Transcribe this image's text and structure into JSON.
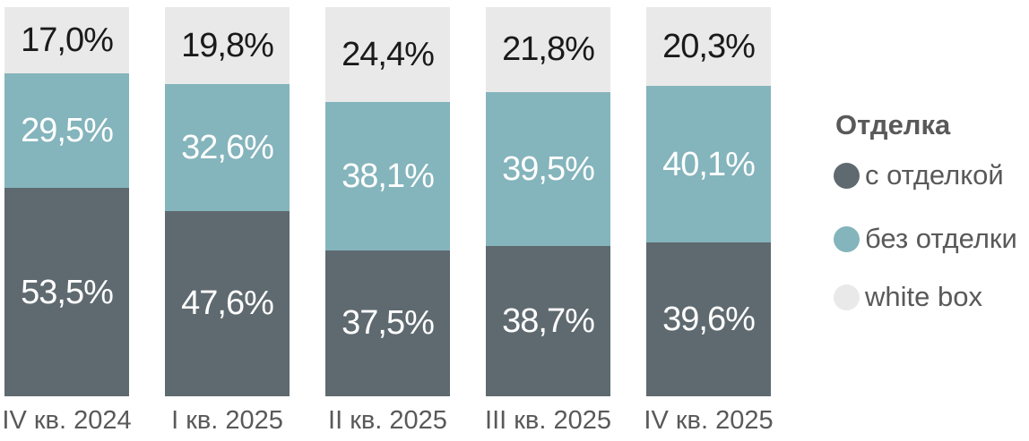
{
  "chart_data": {
    "type": "bar",
    "variant": "stacked-100-percent",
    "orientation": "vertical",
    "grid": false,
    "legend_position": "right",
    "legend_title": "Отделка",
    "categories": [
      "IV кв. 2024",
      "I кв. 2025",
      "II кв. 2025",
      "III кв. 2025",
      "IV кв. 2025"
    ],
    "ylim": [
      0,
      100
    ],
    "series": [
      {
        "name": "с отделкой",
        "color": "#5F6A70",
        "label_color": "#FFFFFF",
        "values": [
          53.5,
          47.6,
          37.5,
          38.7,
          39.6
        ],
        "labels": [
          "53,5%",
          "47,6%",
          "37,5%",
          "38,7%",
          "39,6%"
        ]
      },
      {
        "name": "без отделки",
        "color": "#84B4BC",
        "label_color": "#FFFFFF",
        "values": [
          29.5,
          32.6,
          38.1,
          39.5,
          40.1
        ],
        "labels": [
          "29,5%",
          "32,6%",
          "38,1%",
          "39,5%",
          "40,1%"
        ]
      },
      {
        "name": "white box",
        "color": "#E9E9E9",
        "label_color": "#1A1A1A",
        "values": [
          17.0,
          19.8,
          24.4,
          21.8,
          20.3
        ],
        "labels": [
          "17,0%",
          "19,8%",
          "24,4%",
          "21,8%",
          "20,3%"
        ]
      }
    ]
  },
  "legend": {
    "title": "Отделка",
    "items": [
      {
        "label": "с отделкой",
        "color": "#5F6A70"
      },
      {
        "label": "без отделки",
        "color": "#84B4BC"
      },
      {
        "label": "white box",
        "color": "#E9E9E9"
      }
    ]
  },
  "colors": {
    "axis_text": "#595959",
    "background": "#FFFFFF"
  }
}
